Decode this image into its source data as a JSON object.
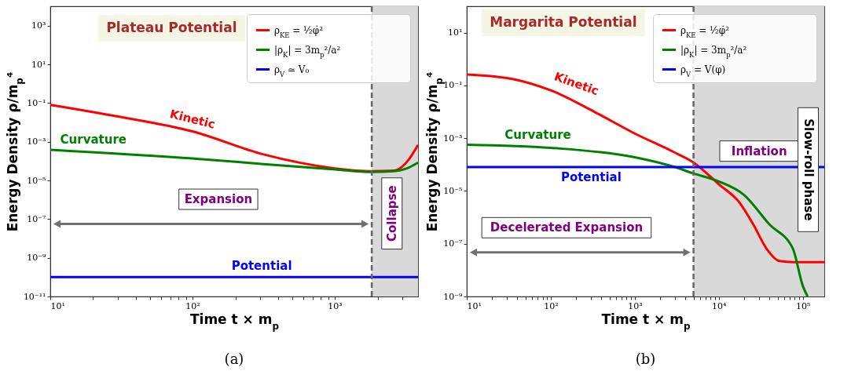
{
  "chart_data": [
    {
      "type": "line",
      "title": "Plateau Potential",
      "xlabel": "Time t × m$_{p}$",
      "ylabel": "Energy Density ρ/m$_{p}$⁴",
      "log": "xy",
      "grid": false,
      "legend": "top right",
      "line_style": "solid",
      "marker": "none",
      "xlim": [
        10,
        3850
      ],
      "ylim": [
        1e-11,
        10000
      ],
      "xticks": [
        {
          "value": 10,
          "label": "10¹"
        },
        {
          "value": 20,
          "label": null
        },
        {
          "value": 30,
          "label": null
        },
        {
          "value": 40,
          "label": null
        },
        {
          "value": 50,
          "label": null
        },
        {
          "value": 60,
          "label": null
        },
        {
          "value": 70,
          "label": null
        },
        {
          "value": 80,
          "label": null
        },
        {
          "value": 90,
          "label": null
        },
        {
          "value": 100,
          "label": "10²"
        },
        {
          "value": 200,
          "label": null
        },
        {
          "value": 300,
          "label": null
        },
        {
          "value": 400,
          "label": null
        },
        {
          "value": 500,
          "label": null
        },
        {
          "value": 600,
          "label": null
        },
        {
          "value": 700,
          "label": null
        },
        {
          "value": 800,
          "label": null
        },
        {
          "value": 900,
          "label": null
        },
        {
          "value": 1000,
          "label": "10³"
        },
        {
          "value": 2000,
          "label": null
        },
        {
          "value": 3000,
          "label": null
        }
      ],
      "yticks": [
        {
          "value": 1e-11,
          "label": "10⁻¹¹"
        },
        {
          "value": 1e-09,
          "label": "10⁻⁹"
        },
        {
          "value": 1e-07,
          "label": "10⁻⁷"
        },
        {
          "value": 1e-05,
          "label": "10⁻⁵"
        },
        {
          "value": 0.001,
          "label": "10⁻³"
        },
        {
          "value": 0.1,
          "label": "10⁻¹"
        },
        {
          "value": 10,
          "label": "10¹"
        },
        {
          "value": 1000,
          "label": "10³"
        }
      ],
      "series": [
        {
          "name": "ρ$_{KE}$ = ½φ̇²",
          "color": "#ff0000",
          "x": [
            10,
            30,
            100,
            316,
            1000,
            1800,
            2600,
            3300,
            3850
          ],
          "values": [
            0.08,
            0.02,
            0.0034,
            0.00022,
            4.2e-05,
            3e-05,
            3.2e-05,
            0.000115,
            0.00068
          ]
        },
        {
          "name": "|ρ$_{K}$| = 3m$_{p}$²/a²",
          "color": "#008000",
          "x": [
            10,
            100,
            316,
            1000,
            1800,
            2600,
            3300,
            3850
          ],
          "values": [
            0.00038,
            0.000135,
            7e-05,
            3.7e-05,
            2.7e-05,
            3e-05,
            4.5e-05,
            8.3e-05
          ]
        },
        {
          "name": "ρ$_{V}$ ≃ V₀",
          "color": "#0000ff",
          "x": [
            10,
            3850
          ],
          "values": [
            1e-10,
            1e-10
          ]
        }
      ],
      "ref_lines": [
        {
          "axis": "x",
          "value": 1820,
          "color": "#666666",
          "line_style": "dashed"
        }
      ],
      "bands": [
        {
          "axis": "x",
          "from": 1820,
          "to": 3850,
          "color": "#d9d9d9"
        }
      ],
      "annotations": [
        "Kinetic",
        "Curvature",
        "Potential",
        "Expansion",
        "Collapse",
        "(a)"
      ]
    },
    {
      "type": "line",
      "title": "Margarita Potential",
      "xlabel": "Time t × m$_{p}$",
      "ylabel": "Energy Density ρ/m$_{p}$⁴",
      "log": "xy",
      "grid": false,
      "legend": "top right",
      "line_style": "solid",
      "marker": "none",
      "xlim": [
        10,
        180000
      ],
      "ylim": [
        1e-09,
        100
      ],
      "xticks": [
        {
          "value": 10,
          "label": "10¹"
        },
        {
          "value": 20,
          "label": null
        },
        {
          "value": 30,
          "label": null
        },
        {
          "value": 40,
          "label": null
        },
        {
          "value": 50,
          "label": null
        },
        {
          "value": 60,
          "label": null
        },
        {
          "value": 70,
          "label": null
        },
        {
          "value": 80,
          "label": null
        },
        {
          "value": 90,
          "label": null
        },
        {
          "value": 100,
          "label": "10²"
        },
        {
          "value": 200,
          "label": null
        },
        {
          "value": 300,
          "label": null
        },
        {
          "value": 400,
          "label": null
        },
        {
          "value": 500,
          "label": null
        },
        {
          "value": 600,
          "label": null
        },
        {
          "value": 700,
          "label": null
        },
        {
          "value": 800,
          "label": null
        },
        {
          "value": 900,
          "label": null
        },
        {
          "value": 1000,
          "label": "10³"
        },
        {
          "value": 2000,
          "label": null
        },
        {
          "value": 3000,
          "label": null
        },
        {
          "value": 4000,
          "label": null
        },
        {
          "value": 5000,
          "label": null
        },
        {
          "value": 6000,
          "label": null
        },
        {
          "value": 7000,
          "label": null
        },
        {
          "value": 8000,
          "label": null
        },
        {
          "value": 9000,
          "label": null
        },
        {
          "value": 10000,
          "label": "10⁴"
        },
        {
          "value": 20000,
          "label": null
        },
        {
          "value": 30000,
          "label": null
        },
        {
          "value": 40000,
          "label": null
        },
        {
          "value": 50000,
          "label": null
        },
        {
          "value": 60000,
          "label": null
        },
        {
          "value": 70000,
          "label": null
        },
        {
          "value": 80000,
          "label": null
        },
        {
          "value": 90000,
          "label": null
        },
        {
          "value": 100000,
          "label": "10⁵"
        }
      ],
      "yticks": [
        {
          "value": 1e-09,
          "label": "10⁻⁹"
        },
        {
          "value": 1e-07,
          "label": "10⁻⁷"
        },
        {
          "value": 1e-05,
          "label": "10⁻⁵"
        },
        {
          "value": 0.001,
          "label": "10⁻³"
        },
        {
          "value": 0.1,
          "label": "10⁻¹"
        },
        {
          "value": 10,
          "label": "10¹"
        }
      ],
      "series": [
        {
          "name": "ρ$_{KE}$ = ½φ̇²",
          "color": "#ff0000",
          "x": [
            10,
            37,
            100,
            330,
            1000,
            2900,
            5000,
            10000,
            17800,
            25700,
            37000,
            53000,
            76000,
            180000
          ],
          "values": [
            0.26,
            0.17,
            0.065,
            0.01,
            0.0015,
            0.0003,
            0.00012,
            1.8e-05,
            3.5e-06,
            5.4e-07,
            6.5e-08,
            2.2e-08,
            2e-08,
            2e-08
          ]
        },
        {
          "name": "|ρ$_{K}$| = 3m$_{p}$²/a²",
          "color": "#008000",
          "x": [
            10,
            100,
            1000,
            2900,
            5000,
            10000,
            20000,
            40000,
            76000,
            100000,
            114000
          ],
          "values": [
            0.00057,
            0.00043,
            0.00019,
            8.3e-05,
            4.6e-05,
            2.3e-05,
            7e-06,
            5.4e-07,
            6.6e-08,
            2.5e-09,
            1e-09
          ]
        },
        {
          "name": "ρ$_{V}$ = V(φ)",
          "color": "#0000ff",
          "x": [
            10,
            180000
          ],
          "values": [
            8e-05,
            8e-05
          ]
        }
      ],
      "ref_lines": [
        {
          "axis": "x",
          "value": 5000,
          "color": "#666666",
          "line_style": "dashed"
        }
      ],
      "bands": [
        {
          "axis": "x",
          "from": 5000,
          "to": 180000,
          "color": "#d9d9d9"
        }
      ],
      "annotations": [
        "Kinetic",
        "Curvature",
        "Potential",
        "Decelerated Expansion",
        "Inflation",
        "Slow-roll phase",
        "(b)"
      ]
    }
  ]
}
